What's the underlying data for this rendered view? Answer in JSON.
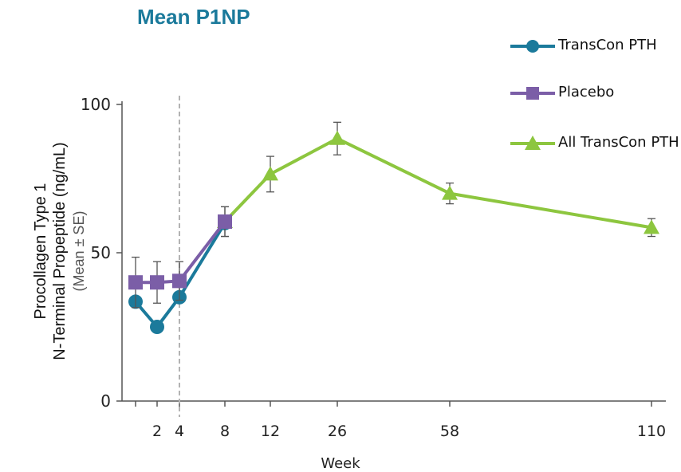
{
  "chart_data": {
    "type": "line",
    "title": "Mean P1NP",
    "xlabel": "Week",
    "ylabel_lines": [
      "Procollagen Type 1",
      "N-Terminal Propeptide (ng/mL)",
      "(Mean ± SE)"
    ],
    "ylim": [
      0,
      100
    ],
    "yticks": [
      0,
      50,
      100
    ],
    "x_categories": [
      "",
      "2",
      "4",
      "8",
      "12",
      "26",
      "58",
      "110"
    ],
    "vertical_reference_line": "4",
    "grid": false,
    "legend_position": "top-right",
    "series": [
      {
        "name": "TransCon PTH",
        "color": "#1b7a9b",
        "marker": "circle",
        "x": [
          "",
          "2",
          "4",
          "8"
        ],
        "y": [
          33.5,
          25,
          35,
          60
        ],
        "err": [
          0,
          0,
          0,
          0
        ]
      },
      {
        "name": "Placebo",
        "color": "#7b5ea7",
        "marker": "square",
        "x": [
          "",
          "2",
          "4",
          "8"
        ],
        "y": [
          40,
          40,
          40.5,
          60.5
        ],
        "err": [
          8.5,
          7,
          6.5,
          5
        ]
      },
      {
        "name": "All TransCon PTH",
        "color": "#8dc63f",
        "marker": "triangle",
        "x": [
          "8",
          "12",
          "26",
          "58",
          "110"
        ],
        "y": [
          60.5,
          76.5,
          88.5,
          70,
          58.5
        ],
        "err": [
          5,
          6,
          5.5,
          3.5,
          3
        ]
      }
    ],
    "colors": {
      "title": "#1b7a9b",
      "axis": "#555555",
      "refline": "#b3b3b3",
      "errorbar": "#555555"
    }
  }
}
